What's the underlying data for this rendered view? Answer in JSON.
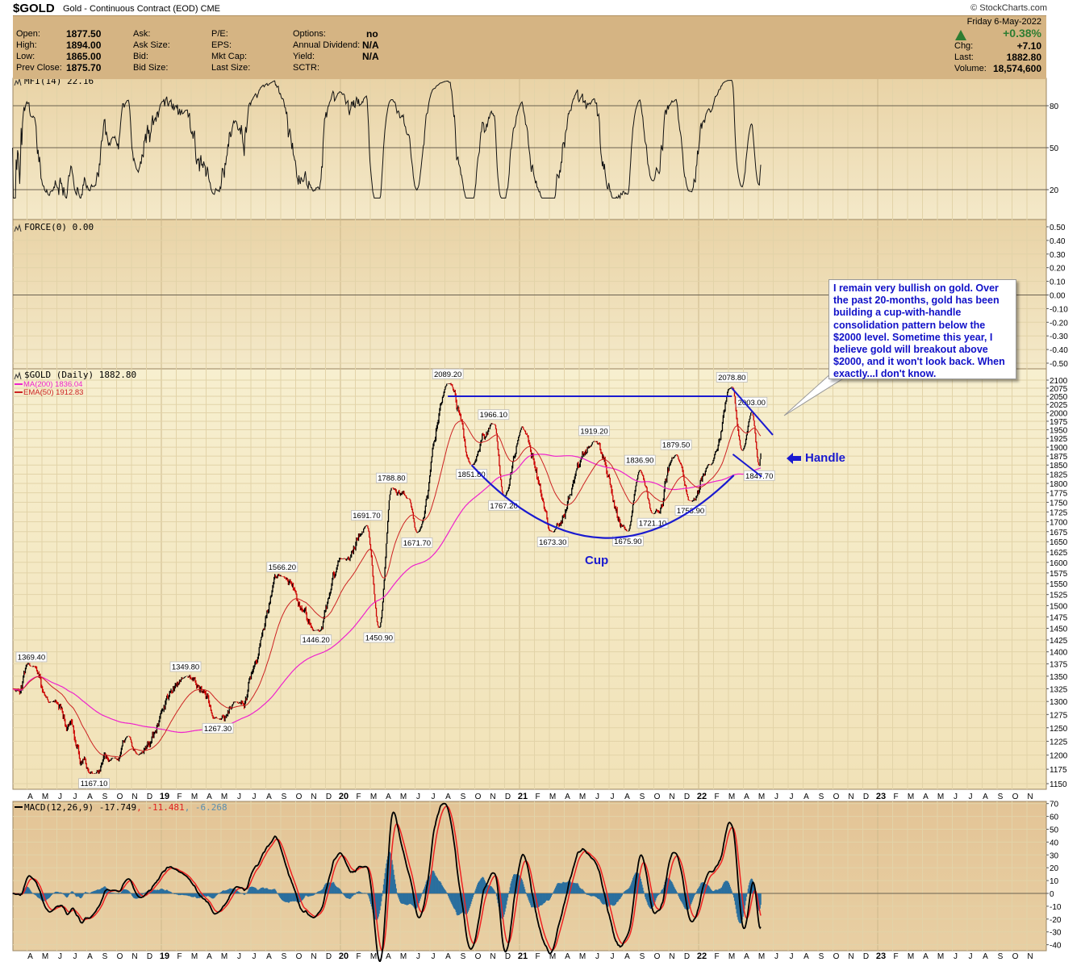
{
  "header": {
    "symbol": "$GOLD",
    "description": "Gold - Continuous Contract (EOD) CME",
    "copyright": "© StockCharts.com",
    "date": "Friday  6-May-2022",
    "pct_change": "+0.38%",
    "up_color": "#2e7d32"
  },
  "info": {
    "col1": [
      {
        "label": "Open:",
        "value": "1877.50"
      },
      {
        "label": "High:",
        "value": "1894.00"
      },
      {
        "label": "Low:",
        "value": "1865.00"
      },
      {
        "label": "Prev Close:",
        "value": "1875.70"
      }
    ],
    "col2": [
      "Ask:",
      "Ask Size:",
      "Bid:",
      "Bid Size:"
    ],
    "col3": [
      "P/E:",
      "EPS:",
      "Mkt Cap:",
      "Last Size:"
    ],
    "col4": [
      {
        "label": "Options:",
        "value": "no"
      },
      {
        "label": "Annual Dividend:",
        "value": "N/A"
      },
      {
        "label": "Yield:",
        "value": "N/A"
      },
      {
        "label": "SCTR:",
        "value": ""
      }
    ],
    "right": [
      {
        "label": "Chg:",
        "value": "+7.10"
      },
      {
        "label": "Last:",
        "value": "1882.80"
      },
      {
        "label": "Volume:",
        "value": "18,574,600"
      }
    ]
  },
  "legends": {
    "mfi": "MFI(14) 22.16",
    "force": "FORCE(0) 0.00",
    "price": "$GOLD (Daily) 1882.80",
    "ma200": "MA(200) 1836.04",
    "ema50": "EMA(50) 1912.83",
    "macd_main": "MACD(12,26,9) -17.749",
    "macd_signal": ", -11.481",
    "macd_hist": ", -6.268"
  },
  "annotations": {
    "callout": "I remain very bullish on gold. Over the past 20-months, gold has been building a cup-with-handle consolidation pattern below the $2000 level. Sometime this year, I believe gold will breakout above $2000, and it won't look back. When exactly...I don't know.",
    "handle": "Handle",
    "cup": "Cup",
    "resistance_level": 2050
  },
  "chart_data": {
    "type": "ohlc",
    "title": "$GOLD (Daily)",
    "scale": "log",
    "ylim": [
      1150,
      2100
    ],
    "x_tick_labels": [
      "A",
      "M",
      "J",
      "J",
      "A",
      "S",
      "O",
      "N",
      "D",
      "19",
      "F",
      "M",
      "A",
      "M",
      "J",
      "J",
      "A",
      "S",
      "O",
      "N",
      "D",
      "20",
      "F",
      "M",
      "A",
      "M",
      "J",
      "J",
      "A",
      "S",
      "O",
      "N",
      "D",
      "21",
      "F",
      "M",
      "A",
      "M",
      "J",
      "J",
      "A",
      "S",
      "O",
      "N",
      "D",
      "22",
      "F",
      "M",
      "A",
      "M",
      "J",
      "J",
      "A",
      "S",
      "O",
      "N",
      "D",
      "23",
      "F",
      "M",
      "A",
      "M",
      "J",
      "J",
      "A",
      "S",
      "O",
      "N"
    ],
    "price_ticks": [
      "2100",
      "2075",
      "2050",
      "2025",
      "2000",
      "1975",
      "1950",
      "1925",
      "1900",
      "1875",
      "1850",
      "1825",
      "1800",
      "1775",
      "1750",
      "1725",
      "1700",
      "1675",
      "1650",
      "1625",
      "1600",
      "1575",
      "1550",
      "1525",
      "1500",
      "1475",
      "1450",
      "1425",
      "1400",
      "1375",
      "1350",
      "1325",
      "1300",
      "1275",
      "1250",
      "1225",
      "1200",
      "1175",
      "1150"
    ],
    "mfi_ticks": [
      "80",
      "50",
      "20"
    ],
    "force_ticks": [
      "0.50",
      "0.40",
      "0.30",
      "0.20",
      "0.10",
      "0.00",
      "-0.10",
      "-0.20",
      "-0.30",
      "-0.40",
      "-0.50"
    ],
    "macd_ticks": [
      "70",
      "60",
      "50",
      "40",
      "30",
      "20",
      "10",
      "0",
      "-10",
      "-20",
      "-30",
      "-40"
    ],
    "pivots": [
      {
        "date": "2018-03-02",
        "value": 1325
      },
      {
        "date": "2018-04-10",
        "value": 1369.4,
        "label": "1369.40"
      },
      {
        "date": "2018-05-20",
        "value": 1300
      },
      {
        "date": "2018-08-16",
        "value": 1167.1,
        "label": "1167.10"
      },
      {
        "date": "2018-09-25",
        "value": 1195
      },
      {
        "date": "2018-10-25",
        "value": 1235
      },
      {
        "date": "2018-11-15",
        "value": 1200
      },
      {
        "date": "2019-02-20",
        "value": 1349.8,
        "label": "1349.80"
      },
      {
        "date": "2019-04-25",
        "value": 1267.3,
        "label": "1267.30"
      },
      {
        "date": "2019-06-01",
        "value": 1300
      },
      {
        "date": "2019-09-04",
        "value": 1566.2,
        "label": "1566.20"
      },
      {
        "date": "2019-11-12",
        "value": 1446.2,
        "label": "1446.20"
      },
      {
        "date": "2020-01-08",
        "value": 1610
      },
      {
        "date": "2020-02-24",
        "value": 1691.7,
        "label": "1691.70"
      },
      {
        "date": "2020-03-19",
        "value": 1450.9,
        "label": "1450.90"
      },
      {
        "date": "2020-04-14",
        "value": 1788.8,
        "label": "1788.80"
      },
      {
        "date": "2020-05-18",
        "value": 1760
      },
      {
        "date": "2020-06-05",
        "value": 1671.7,
        "label": "1671.70"
      },
      {
        "date": "2020-08-07",
        "value": 2089.2,
        "label": "2089.20"
      },
      {
        "date": "2020-09-25",
        "value": 1851.8,
        "label": "1851.80"
      },
      {
        "date": "2020-11-09",
        "value": 1966.1,
        "label": "1966.10"
      },
      {
        "date": "2020-11-30",
        "value": 1767.2,
        "label": "1767.20"
      },
      {
        "date": "2021-01-06",
        "value": 1960
      },
      {
        "date": "2021-03-08",
        "value": 1673.3,
        "label": "1673.30"
      },
      {
        "date": "2021-06-01",
        "value": 1919.2,
        "label": "1919.20"
      },
      {
        "date": "2021-08-09",
        "value": 1675.9,
        "label": "1675.90"
      },
      {
        "date": "2021-09-03",
        "value": 1836.9,
        "label": "1836.90"
      },
      {
        "date": "2021-09-29",
        "value": 1721.1,
        "label": "1721.10"
      },
      {
        "date": "2021-11-16",
        "value": 1879.5,
        "label": "1879.50"
      },
      {
        "date": "2021-12-15",
        "value": 1753.9,
        "label": "1753.90"
      },
      {
        "date": "2022-01-25",
        "value": 1850
      },
      {
        "date": "2022-03-08",
        "value": 2078.8,
        "label": "2078.80"
      },
      {
        "date": "2022-03-29",
        "value": 1890
      },
      {
        "date": "2022-04-18",
        "value": 2003.0,
        "label": "2003.00"
      },
      {
        "date": "2022-05-03",
        "value": 1847.7,
        "label": "1847.70"
      },
      {
        "date": "2022-05-06",
        "value": 1882.8
      }
    ],
    "colors": {
      "up": "#000000",
      "down": "#cc0000",
      "ma200": "#ee22cc",
      "ema50": "#cc2222",
      "macd": "#000000",
      "signal": "#ee2222",
      "hist": "#2a6f9e",
      "annotation": "#1a1ad0"
    }
  }
}
